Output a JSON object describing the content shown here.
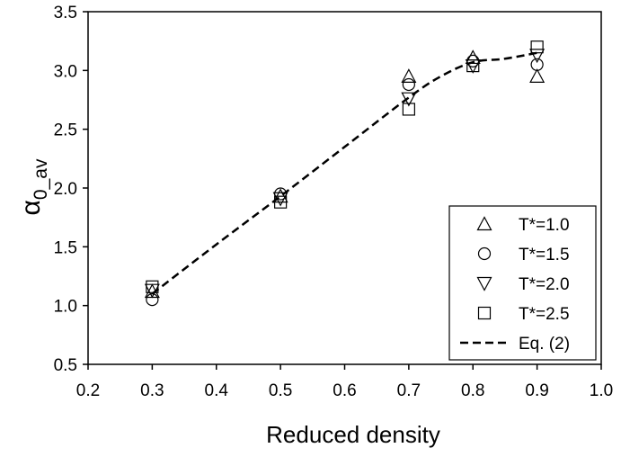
{
  "chart_data": {
    "type": "scatter",
    "xlabel": "Reduced density",
    "ylabel_main": "α",
    "ylabel_sub": "0_av",
    "xlim": [
      0.2,
      1.0
    ],
    "ylim": [
      0.5,
      3.5
    ],
    "xticks": [
      "0.2",
      "0.3",
      "0.4",
      "0.5",
      "0.6",
      "0.7",
      "0.8",
      "0.9",
      "1.0"
    ],
    "yticks": [
      "0.5",
      "1.0",
      "1.5",
      "2.0",
      "2.5",
      "3.0",
      "3.5"
    ],
    "grid": false,
    "legend_position": "bottom-right",
    "series": [
      {
        "name": "T*=1.0",
        "marker": "triangle-up",
        "x": [
          0.3,
          0.5,
          0.7,
          0.8,
          0.9
        ],
        "y": [
          1.12,
          1.93,
          2.95,
          3.11,
          2.95
        ]
      },
      {
        "name": "T*=1.5",
        "marker": "circle",
        "x": [
          0.3,
          0.5,
          0.7,
          0.8,
          0.9
        ],
        "y": [
          1.05,
          1.95,
          2.88,
          3.08,
          3.05
        ]
      },
      {
        "name": "T*=2.0",
        "marker": "triangle-down",
        "x": [
          0.3,
          0.5,
          0.7,
          0.8,
          0.9
        ],
        "y": [
          1.13,
          1.91,
          2.76,
          3.04,
          3.13
        ]
      },
      {
        "name": "T*=2.5",
        "marker": "square",
        "x": [
          0.3,
          0.5,
          0.7,
          0.8,
          0.9
        ],
        "y": [
          1.16,
          1.88,
          2.67,
          3.04,
          3.2
        ]
      }
    ],
    "fit_line": {
      "name": "Eq. (2)",
      "style": "dashed",
      "x": [
        0.3,
        0.4,
        0.5,
        0.6,
        0.7,
        0.75,
        0.8,
        0.85,
        0.9
      ],
      "y": [
        1.1,
        1.52,
        1.93,
        2.35,
        2.77,
        2.95,
        3.07,
        3.1,
        3.15
      ]
    }
  }
}
